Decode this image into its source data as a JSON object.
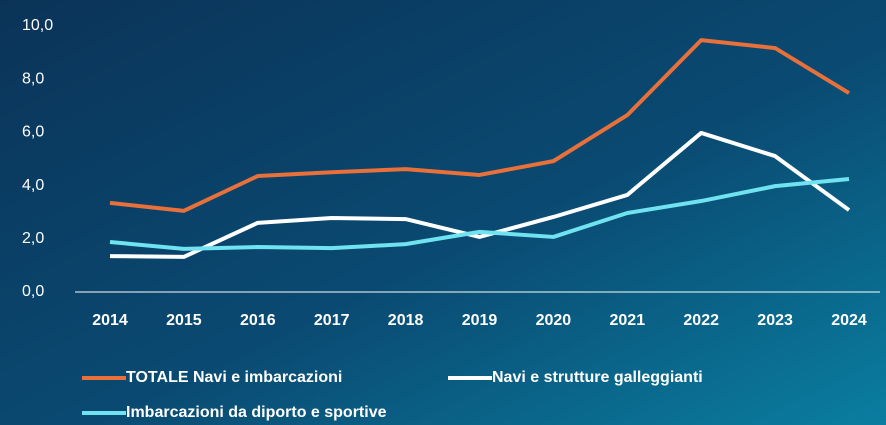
{
  "chart_data": {
    "type": "line",
    "categories": [
      "2014",
      "2015",
      "2016",
      "2017",
      "2018",
      "2019",
      "2020",
      "2021",
      "2022",
      "2023",
      "2024"
    ],
    "series": [
      {
        "name": "TOTALE Navi e imbarcazioni",
        "color": "#e8703a",
        "values": [
          3.35,
          3.05,
          4.36,
          4.5,
          4.62,
          4.4,
          4.92,
          6.65,
          9.47,
          9.17,
          7.48
        ]
      },
      {
        "name": "Navi e strutture galleggianti",
        "color": "#ffffff",
        "values": [
          1.35,
          1.32,
          2.6,
          2.78,
          2.74,
          2.07,
          2.82,
          3.65,
          5.98,
          5.11,
          3.08
        ]
      },
      {
        "name": "Imbarcazioni da diporto e sportive",
        "color": "#6fe3f0",
        "values": [
          1.88,
          1.62,
          1.69,
          1.65,
          1.8,
          2.26,
          2.07,
          2.97,
          3.42,
          3.98,
          4.25
        ]
      }
    ],
    "ylim": [
      0,
      10
    ],
    "yticks": [
      {
        "value": 0,
        "label": "0,0"
      },
      {
        "value": 2,
        "label": "2,0"
      },
      {
        "value": 4,
        "label": "4,0"
      },
      {
        "value": 6,
        "label": "6,0"
      },
      {
        "value": 8,
        "label": "8,0"
      },
      {
        "value": 10,
        "label": "10,0"
      }
    ],
    "grid": false,
    "legend": "bottom"
  }
}
